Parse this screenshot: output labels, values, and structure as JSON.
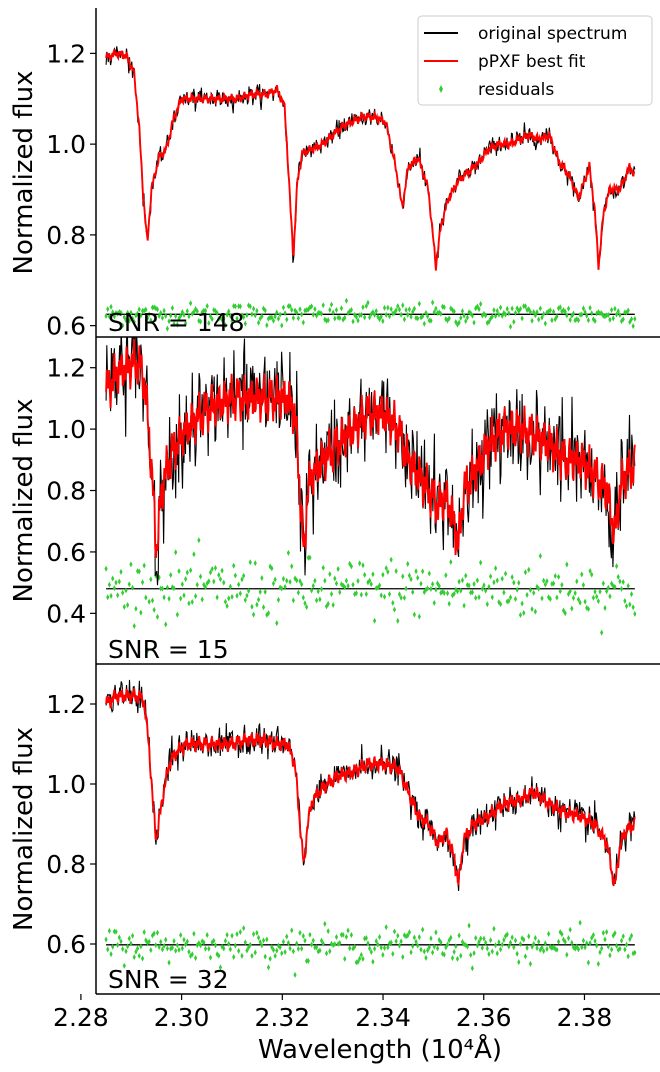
{
  "chart_data": [
    {
      "type": "line",
      "annotation": "SNR = 148",
      "ylabel": "Normalized flux",
      "xlabel": "",
      "xlim": [
        2.283,
        2.395
      ],
      "ylim": [
        0.575,
        1.3
      ],
      "xticks": [
        2.28,
        2.3,
        2.32,
        2.34,
        2.36,
        2.38
      ],
      "yticks": [
        "0.6",
        "0.8",
        "1.0",
        "1.2"
      ],
      "residual_level": 0.625,
      "residual_scatter": 0.012,
      "legend_position": "top-right",
      "noise": 0.008,
      "series": [
        {
          "name": "pPXF best fit",
          "color": "#ff0000",
          "x": [
            2.285,
            2.287,
            2.289,
            2.2905,
            2.2915,
            2.2923,
            2.2932,
            2.294,
            2.2955,
            2.297,
            2.2985,
            2.3,
            2.302,
            2.305,
            2.308,
            2.311,
            2.314,
            2.317,
            2.319,
            2.3205,
            2.3213,
            2.3222,
            2.323,
            2.324,
            2.326,
            2.328,
            2.33,
            2.332,
            2.334,
            2.336,
            2.338,
            2.3405,
            2.3425,
            2.3438,
            2.345,
            2.347,
            2.349,
            2.3505,
            2.3515,
            2.353,
            2.355,
            2.357,
            2.359,
            2.361,
            2.363,
            2.365,
            2.367,
            2.369,
            2.371,
            2.373,
            2.375,
            2.377,
            2.3788,
            2.38,
            2.381,
            2.382,
            2.3828,
            2.3838,
            2.385,
            2.387,
            2.389,
            2.39
          ],
          "y": [
            1.19,
            1.2,
            1.195,
            1.16,
            1.05,
            0.9,
            0.78,
            0.9,
            0.97,
            0.99,
            1.06,
            1.1,
            1.1,
            1.1,
            1.1,
            1.1,
            1.11,
            1.11,
            1.12,
            1.08,
            0.92,
            0.75,
            0.92,
            0.98,
            0.99,
            1.0,
            1.02,
            1.04,
            1.05,
            1.06,
            1.06,
            1.05,
            0.95,
            0.86,
            0.95,
            0.97,
            0.9,
            0.73,
            0.82,
            0.88,
            0.92,
            0.94,
            0.96,
            0.99,
            1.0,
            1.0,
            1.01,
            1.02,
            1.01,
            1.02,
            0.96,
            0.93,
            0.88,
            0.92,
            0.95,
            0.86,
            0.73,
            0.85,
            0.9,
            0.9,
            0.95,
            0.93
          ]
        }
      ]
    },
    {
      "type": "line",
      "annotation": "SNR = 15",
      "ylabel": "Normalized flux",
      "xlabel": "",
      "xlim": [
        2.283,
        2.395
      ],
      "ylim": [
        0.235,
        1.3
      ],
      "xticks": [
        2.28,
        2.3,
        2.32,
        2.34,
        2.36,
        2.38
      ],
      "yticks": [
        "0.4",
        "0.6",
        "0.8",
        "1.0",
        "1.2"
      ],
      "residual_level": 0.48,
      "residual_scatter": 0.05,
      "noise": 0.06,
      "series": [
        {
          "name": "pPXF best fit",
          "color": "#ff0000",
          "x": [
            2.285,
            2.287,
            2.289,
            2.2912,
            2.2925,
            2.2935,
            2.2943,
            2.295,
            2.296,
            2.2975,
            2.299,
            2.301,
            2.304,
            2.307,
            2.31,
            2.313,
            2.316,
            2.319,
            2.321,
            2.3225,
            2.3235,
            2.3243,
            2.325,
            2.326,
            2.328,
            2.331,
            2.334,
            2.337,
            2.34,
            2.343,
            2.345,
            2.347,
            2.349,
            2.351,
            2.3525,
            2.354,
            2.355,
            2.356,
            2.358,
            2.361,
            2.364,
            2.367,
            2.37,
            2.373,
            2.376,
            2.379,
            2.382,
            2.3845,
            2.386,
            2.387,
            2.388,
            2.39
          ],
          "y": [
            1.12,
            1.18,
            1.2,
            1.22,
            1.17,
            1.0,
            0.8,
            0.6,
            0.8,
            0.9,
            0.95,
            1.0,
            1.05,
            1.08,
            1.1,
            1.1,
            1.1,
            1.1,
            1.1,
            1.05,
            0.8,
            0.58,
            0.8,
            0.85,
            0.9,
            0.95,
            1.0,
            1.05,
            1.05,
            1.0,
            0.9,
            0.85,
            0.8,
            0.75,
            0.78,
            0.7,
            0.62,
            0.8,
            0.85,
            0.95,
            1.0,
            1.0,
            0.98,
            0.95,
            0.9,
            0.9,
            0.85,
            0.8,
            0.65,
            0.8,
            0.85,
            0.88
          ]
        }
      ]
    },
    {
      "type": "line",
      "annotation": "SNR = 32",
      "ylabel": "Normalized flux",
      "xlabel": "Wavelength (10⁴Å)",
      "xlim": [
        2.283,
        2.395
      ],
      "ylim": [
        0.475,
        1.3
      ],
      "xticks": [
        2.28,
        2.3,
        2.32,
        2.34,
        2.36,
        2.38
      ],
      "xtick_labels": [
        "2.28",
        "2.30",
        "2.32",
        "2.34",
        "2.36",
        "2.38"
      ],
      "yticks": [
        "0.6",
        "0.8",
        "1.0",
        "1.2"
      ],
      "residual_level": 0.598,
      "residual_scatter": 0.02,
      "noise": 0.015,
      "series": [
        {
          "name": "pPXF best fit",
          "color": "#ff0000",
          "x": [
            2.285,
            2.287,
            2.289,
            2.2912,
            2.2925,
            2.2935,
            2.2943,
            2.295,
            2.296,
            2.2975,
            2.299,
            2.301,
            2.304,
            2.307,
            2.31,
            2.313,
            2.316,
            2.319,
            2.321,
            2.3225,
            2.3235,
            2.3243,
            2.325,
            2.326,
            2.328,
            2.331,
            2.334,
            2.337,
            2.34,
            2.343,
            2.345,
            2.347,
            2.349,
            2.351,
            2.3525,
            2.354,
            2.355,
            2.356,
            2.358,
            2.361,
            2.364,
            2.367,
            2.37,
            2.373,
            2.376,
            2.379,
            2.382,
            2.3845,
            2.386,
            2.387,
            2.388,
            2.39
          ],
          "y": [
            1.2,
            1.22,
            1.22,
            1.22,
            1.21,
            1.1,
            0.95,
            0.86,
            0.95,
            1.05,
            1.08,
            1.1,
            1.1,
            1.1,
            1.1,
            1.11,
            1.11,
            1.1,
            1.1,
            1.05,
            0.9,
            0.79,
            0.9,
            0.96,
            0.99,
            1.02,
            1.03,
            1.05,
            1.05,
            1.04,
            0.98,
            0.92,
            0.9,
            0.85,
            0.88,
            0.82,
            0.75,
            0.86,
            0.9,
            0.92,
            0.95,
            0.96,
            0.98,
            0.95,
            0.93,
            0.92,
            0.9,
            0.85,
            0.74,
            0.84,
            0.88,
            0.9
          ]
        }
      ]
    }
  ],
  "legend": {
    "items": [
      {
        "label": "original spectrum",
        "color": "#000000",
        "style": "line"
      },
      {
        "label": "pPXF best fit",
        "color": "#ff0000",
        "style": "line"
      },
      {
        "label": "residuals",
        "color": "#32cd32",
        "style": "marker"
      }
    ]
  }
}
